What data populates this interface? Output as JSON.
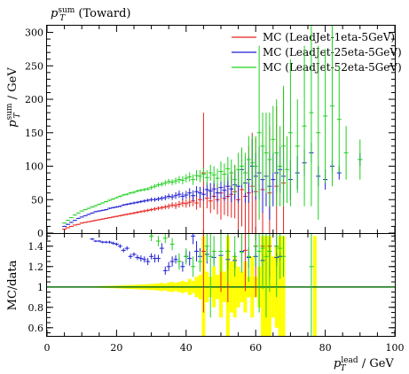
{
  "chart_data": [
    {
      "type": "scatter",
      "title": "p_T^sum (Toward)",
      "title_parts": {
        "var": "p",
        "sub": "T",
        "sup": "sum",
        "rest": " (Toward)"
      },
      "ylabel_parts": {
        "var": "p",
        "sub": "T",
        "sup": "sum",
        "rest": " / GeV"
      },
      "ylim": [
        0,
        310
      ],
      "yticks": [
        "0",
        "50",
        "100",
        "150",
        "200",
        "250",
        "300"
      ],
      "legend_position": "top-right",
      "series": [
        {
          "name": "MC (LeadJet-1eta-5GeV)",
          "color": "#e8211d",
          "x": [
            5,
            6,
            7,
            8,
            9,
            10,
            11,
            12,
            13,
            14,
            15,
            16,
            17,
            18,
            19,
            20,
            21,
            22,
            23,
            24,
            25,
            26,
            27,
            28,
            29,
            30,
            31,
            32,
            33,
            34,
            35,
            36,
            37,
            38,
            39,
            40,
            41,
            42,
            43,
            44,
            45,
            46,
            47,
            48,
            49,
            50,
            51,
            52,
            53,
            54,
            55,
            56,
            57,
            58,
            59,
            60,
            62,
            64,
            66,
            68
          ],
          "y": [
            6,
            8,
            10,
            12,
            13,
            15,
            16,
            17,
            18,
            19,
            20,
            21,
            22,
            23,
            24,
            25,
            26,
            27,
            28,
            29,
            30,
            31,
            32,
            33,
            34,
            35,
            36,
            37,
            38,
            39,
            40,
            42,
            41,
            43,
            45,
            44,
            46,
            48,
            45,
            50,
            90,
            52,
            48,
            55,
            50,
            60,
            52,
            55,
            58,
            62,
            50,
            65,
            55,
            60,
            70,
            62,
            65,
            60,
            70,
            75
          ],
          "err": [
            0.8,
            0.8,
            0.8,
            0.8,
            0.8,
            0.8,
            0.8,
            0.8,
            0.9,
            0.9,
            1,
            1,
            1,
            1,
            1.2,
            1.2,
            1.3,
            1.4,
            1.5,
            1.6,
            1.8,
            2,
            2,
            2.2,
            2.5,
            2.5,
            2.8,
            3,
            3,
            3.5,
            4,
            4,
            5,
            5,
            6,
            6,
            7,
            8,
            10,
            12,
            90,
            15,
            18,
            20,
            22,
            40,
            25,
            30,
            35,
            40,
            45,
            55,
            60,
            70,
            80,
            80,
            90,
            100,
            120,
            140
          ]
        },
        {
          "name": "MC (LeadJet-25eta-5GeV)",
          "color": "#1f1fd0",
          "x": [
            5,
            6,
            7,
            8,
            9,
            10,
            11,
            12,
            13,
            14,
            15,
            16,
            17,
            18,
            19,
            20,
            21,
            22,
            23,
            24,
            25,
            26,
            27,
            28,
            29,
            30,
            31,
            32,
            33,
            34,
            35,
            36,
            37,
            38,
            39,
            40,
            41,
            42,
            43,
            44,
            45,
            46,
            47,
            48,
            49,
            50,
            51,
            52,
            53,
            54,
            55,
            56,
            57,
            58,
            59,
            60,
            61,
            62,
            63,
            64,
            65,
            66,
            67,
            68,
            70,
            72,
            74,
            76,
            78,
            80,
            82,
            84,
            90
          ],
          "y": [
            10,
            13,
            16,
            19,
            22,
            24,
            26,
            28,
            30,
            32,
            33,
            34,
            35,
            37,
            38,
            39,
            40,
            42,
            43,
            44,
            45,
            46,
            47,
            48,
            49,
            50,
            50,
            51,
            52,
            53,
            55,
            54,
            56,
            58,
            55,
            57,
            60,
            56,
            62,
            60,
            58,
            65,
            63,
            66,
            60,
            68,
            64,
            70,
            66,
            72,
            70,
            95,
            75,
            80,
            100,
            85,
            90,
            80,
            85,
            70,
            80,
            90,
            95,
            85,
            80,
            90,
            105,
            120,
            85,
            80,
            100,
            90,
            110
          ],
          "err": [
            0.8,
            0.8,
            0.8,
            0.8,
            0.8,
            0.8,
            0.8,
            0.9,
            0.9,
            1,
            1,
            1,
            1.1,
            1.2,
            1.2,
            1.3,
            1.4,
            1.5,
            1.6,
            1.8,
            2,
            2,
            2.2,
            2.5,
            2.5,
            3,
            3,
            3.2,
            3.5,
            4,
            4,
            4.5,
            5,
            5.5,
            6,
            6,
            7,
            8,
            8,
            9,
            10,
            11,
            12,
            13,
            14,
            15,
            16,
            18,
            20,
            22,
            25,
            28,
            30,
            35,
            40,
            35,
            40,
            50,
            45,
            50,
            40,
            30,
            35,
            40,
            30,
            25,
            20,
            15,
            15,
            15,
            10,
            10,
            10
          ]
        },
        {
          "name": "MC (LeadJet-52eta-5GeV)",
          "color": "#20d020",
          "x": [
            5,
            6,
            7,
            8,
            9,
            10,
            11,
            12,
            13,
            14,
            15,
            16,
            17,
            18,
            19,
            20,
            21,
            22,
            23,
            24,
            25,
            26,
            27,
            28,
            29,
            30,
            31,
            32,
            33,
            34,
            35,
            36,
            37,
            38,
            39,
            40,
            41,
            42,
            43,
            44,
            45,
            46,
            47,
            48,
            49,
            50,
            51,
            52,
            53,
            54,
            55,
            56,
            57,
            58,
            59,
            60,
            61,
            62,
            63,
            64,
            65,
            66,
            67,
            68,
            69,
            70,
            72,
            74,
            76,
            78,
            80,
            82,
            84,
            86,
            90
          ],
          "y": [
            15,
            19,
            23,
            27,
            30,
            33,
            35,
            37,
            39,
            41,
            43,
            45,
            47,
            49,
            51,
            53,
            55,
            57,
            58,
            60,
            61,
            63,
            64,
            65,
            66,
            68,
            70,
            72,
            73,
            75,
            77,
            76,
            78,
            80,
            79,
            82,
            84,
            80,
            86,
            85,
            88,
            83,
            90,
            87,
            82,
            92,
            88,
            96,
            90,
            80,
            95,
            100,
            90,
            110,
            105,
            100,
            150,
            130,
            120,
            110,
            140,
            120,
            100,
            130,
            95,
            150,
            130,
            160,
            180,
            150,
            175,
            190,
            170,
            120,
            110
          ],
          "err": [
            0.8,
            0.8,
            0.8,
            0.8,
            0.8,
            0.8,
            0.8,
            0.9,
            0.9,
            1,
            1,
            1,
            1.1,
            1.2,
            1.2,
            1.3,
            1.4,
            1.5,
            1.6,
            1.8,
            2,
            2,
            2.2,
            2.5,
            2.5,
            3,
            3,
            3.2,
            3.5,
            4,
            4,
            4.5,
            5,
            5.5,
            6,
            6,
            7,
            8,
            8,
            9,
            10,
            11,
            12,
            13,
            14,
            15,
            16,
            18,
            20,
            22,
            25,
            28,
            30,
            35,
            40,
            45,
            130,
            50,
            60,
            70,
            50,
            80,
            60,
            90,
            50,
            110,
            70,
            120,
            140,
            130,
            100,
            120,
            80,
            40,
            30
          ]
        }
      ]
    },
    {
      "type": "scatter",
      "ylabel": "MC/data",
      "xlabel_parts": {
        "var": "p",
        "sub": "T",
        "sup": "lead",
        "rest": " / GeV"
      },
      "xlim": [
        0,
        100
      ],
      "ylim": [
        0.52,
        1.52
      ],
      "xticks": [
        "0",
        "20",
        "40",
        "60",
        "80",
        "100"
      ],
      "yticks": [
        "0.6",
        "0.8",
        "1",
        "1.2",
        "1.4"
      ],
      "reference_line": 1,
      "band_color": "#ffff00",
      "band": {
        "x": [
          5,
          6,
          7,
          8,
          9,
          10,
          11,
          12,
          13,
          14,
          15,
          16,
          17,
          18,
          19,
          20,
          21,
          22,
          23,
          24,
          25,
          26,
          27,
          28,
          29,
          30,
          31,
          32,
          33,
          34,
          35,
          36,
          37,
          38,
          39,
          40,
          41,
          42,
          43,
          44,
          45,
          46,
          47,
          48,
          49,
          50,
          51,
          52,
          53,
          54,
          55,
          56,
          57,
          58,
          59,
          60,
          61,
          62,
          63,
          64,
          65,
          66,
          67,
          68,
          77
        ],
        "err": [
          0.004,
          0.004,
          0.004,
          0.005,
          0.005,
          0.005,
          0.006,
          0.006,
          0.007,
          0.008,
          0.008,
          0.01,
          0.01,
          0.012,
          0.012,
          0.014,
          0.015,
          0.017,
          0.018,
          0.02,
          0.02,
          0.022,
          0.025,
          0.025,
          0.028,
          0.03,
          0.03,
          0.035,
          0.04,
          0.035,
          0.045,
          0.05,
          0.04,
          0.05,
          0.06,
          0.05,
          0.08,
          0.06,
          0.1,
          0.12,
          0.5,
          0.15,
          0.1,
          0.2,
          0.12,
          0.3,
          0.15,
          0.5,
          0.25,
          0.3,
          0.2,
          0.15,
          0.25,
          0.1,
          0.3,
          0.1,
          0.2,
          0.5,
          0.5,
          0.5,
          0.3,
          0.4,
          0.5,
          0.5,
          0.5
        ]
      },
      "series": [
        {
          "name": "MC (LeadJet-1eta-5GeV)",
          "color": "#e8211d",
          "x": [
            45,
            50,
            52,
            57,
            60,
            62,
            64,
            66
          ],
          "y": [
            1.35,
            1.35,
            1.35,
            1.36,
            1.4,
            1.4,
            1.4,
            1.4
          ],
          "err": [
            0.6,
            0.4,
            0.5,
            0.4,
            0.5,
            0.4,
            0.3,
            0.2
          ]
        },
        {
          "name": "MC (LeadJet-25eta-5GeV)",
          "color": "#1f1fd0",
          "x": [
            13,
            14,
            15,
            16,
            17,
            18,
            19,
            20,
            21,
            22,
            23,
            24,
            25,
            26,
            27,
            28,
            29,
            30,
            31,
            32,
            33,
            34,
            35,
            36,
            37,
            38,
            39,
            40,
            41,
            42,
            43,
            44,
            46,
            48,
            50,
            52,
            54,
            56,
            58,
            60,
            62,
            64,
            66,
            67
          ],
          "y": [
            1.47,
            1.45,
            1.45,
            1.44,
            1.44,
            1.44,
            1.43,
            1.42,
            1.4,
            1.36,
            1.38,
            1.3,
            1.32,
            1.29,
            1.28,
            1.27,
            1.25,
            1.3,
            1.28,
            1.28,
            1.38,
            1.16,
            1.2,
            1.25,
            1.27,
            1.25,
            1.2,
            1.3,
            1.28,
            1.5,
            1.35,
            1.3,
            1.32,
            1.29,
            1.31,
            1.27,
            1.26,
            1.35,
            1.29,
            1.3,
            1.26,
            1.35,
            1.29,
            1.3
          ],
          "err": [
            0.01,
            0.01,
            0.01,
            0.012,
            0.012,
            0.014,
            0.015,
            0.016,
            0.02,
            0.02,
            0.02,
            0.025,
            0.02,
            0.025,
            0.03,
            0.03,
            0.035,
            0.03,
            0.04,
            0.035,
            0.05,
            0.04,
            0.045,
            0.05,
            0.04,
            0.05,
            0.05,
            0.06,
            0.07,
            0.08,
            0.1,
            0.08,
            0.09,
            0.07,
            0.1,
            0.1,
            0.08,
            0.12,
            0.1,
            0.1,
            0.07,
            0.06,
            0.04,
            0.04
          ]
        },
        {
          "name": "MC (LeadJet-52eta-5GeV)",
          "color": "#20d020",
          "x": [
            30,
            32,
            34,
            36,
            38,
            40,
            42,
            44,
            46,
            47,
            48,
            50,
            52,
            54,
            56,
            58,
            60,
            61,
            62,
            63,
            64,
            66,
            67,
            68,
            76
          ],
          "y": [
            1.5,
            1.45,
            1.48,
            1.42,
            1.25,
            1.3,
            1.2,
            1.25,
            1.4,
            1.3,
            1.35,
            1.35,
            1.35,
            1.3,
            1.34,
            1.3,
            1.4,
            1.35,
            1.38,
            1.3,
            1.35,
            1.4,
            1.38,
            1.3,
            1.2
          ],
          "err": [
            0.05,
            0.05,
            0.05,
            0.06,
            0.08,
            0.08,
            0.1,
            0.1,
            0.15,
            0.6,
            0.15,
            0.2,
            0.3,
            0.2,
            0.2,
            0.25,
            0.2,
            0.6,
            0.4,
            0.6,
            0.4,
            0.5,
            0.3,
            0.2,
            0.8
          ]
        }
      ]
    }
  ]
}
